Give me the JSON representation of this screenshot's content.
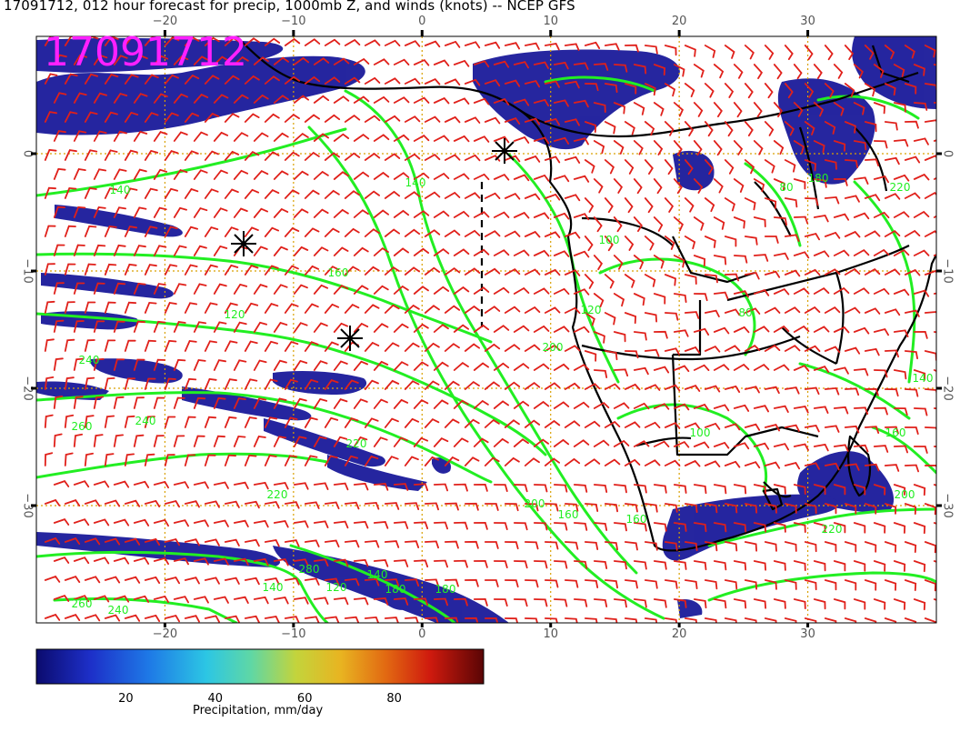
{
  "title": "17091712, 012 hour forecast for precip, 1000mb Z, and winds (knots) -- NCEP GFS",
  "date_label": "17091712",
  "map": {
    "lon_range": [
      -30,
      40
    ],
    "lat_range": [
      -40,
      10
    ],
    "lon_ticks": [
      "−20",
      "−10",
      "0",
      "10",
      "20",
      "30"
    ],
    "lat_ticks": [
      "0",
      "−10",
      "−20",
      "−30"
    ],
    "contour_labels": [
      "140",
      "140",
      "160",
      "100",
      "120",
      "200",
      "240",
      "240",
      "260",
      "220",
      "220",
      "200",
      "160",
      "160",
      "140",
      "120",
      "180",
      "260",
      "240",
      "280",
      "180",
      "140",
      "80",
      "80",
      "160",
      "200",
      "220",
      "140",
      "180",
      "100",
      "120",
      "220"
    ],
    "contour_color": "#22ee22",
    "barb_color": "#e0201a",
    "precip_color": "#1a1a9a",
    "coast_color": "#000000",
    "grid_color": "#d9a000"
  },
  "colorbar": {
    "label": "Precipitation, mm/day",
    "ticks": [
      "20",
      "40",
      "60",
      "80"
    ],
    "range": [
      0,
      100
    ]
  }
}
